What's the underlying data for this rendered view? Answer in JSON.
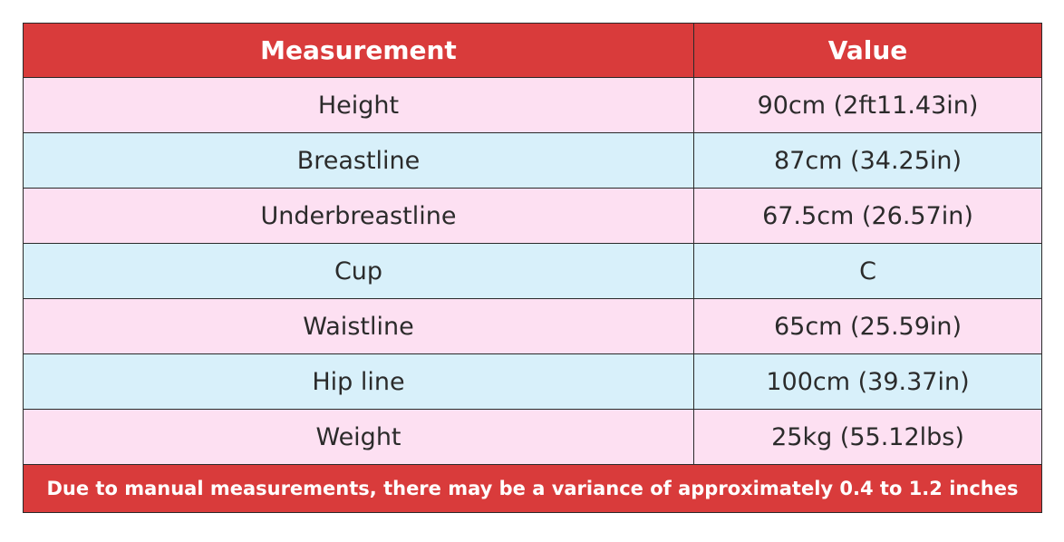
{
  "header": {
    "columns": [
      "Measurement",
      "Value"
    ]
  },
  "table": {
    "rows": [
      [
        "Height",
        "90cm (2ft11.43in)"
      ],
      [
        "Breastline",
        "87cm (34.25in)"
      ],
      [
        "Underbreastline",
        "67.5cm (26.57in)"
      ],
      [
        "Cup",
        "C"
      ],
      [
        "Waistline",
        "65cm (25.59in)"
      ],
      [
        "Hip line",
        "100cm (39.37in)"
      ],
      [
        "Weight",
        "25kg (55.12lbs)"
      ]
    ]
  },
  "footer": {
    "note": "Due to manual measurements, there may be a variance of approximately 0.4 to 1.2 inches"
  }
}
